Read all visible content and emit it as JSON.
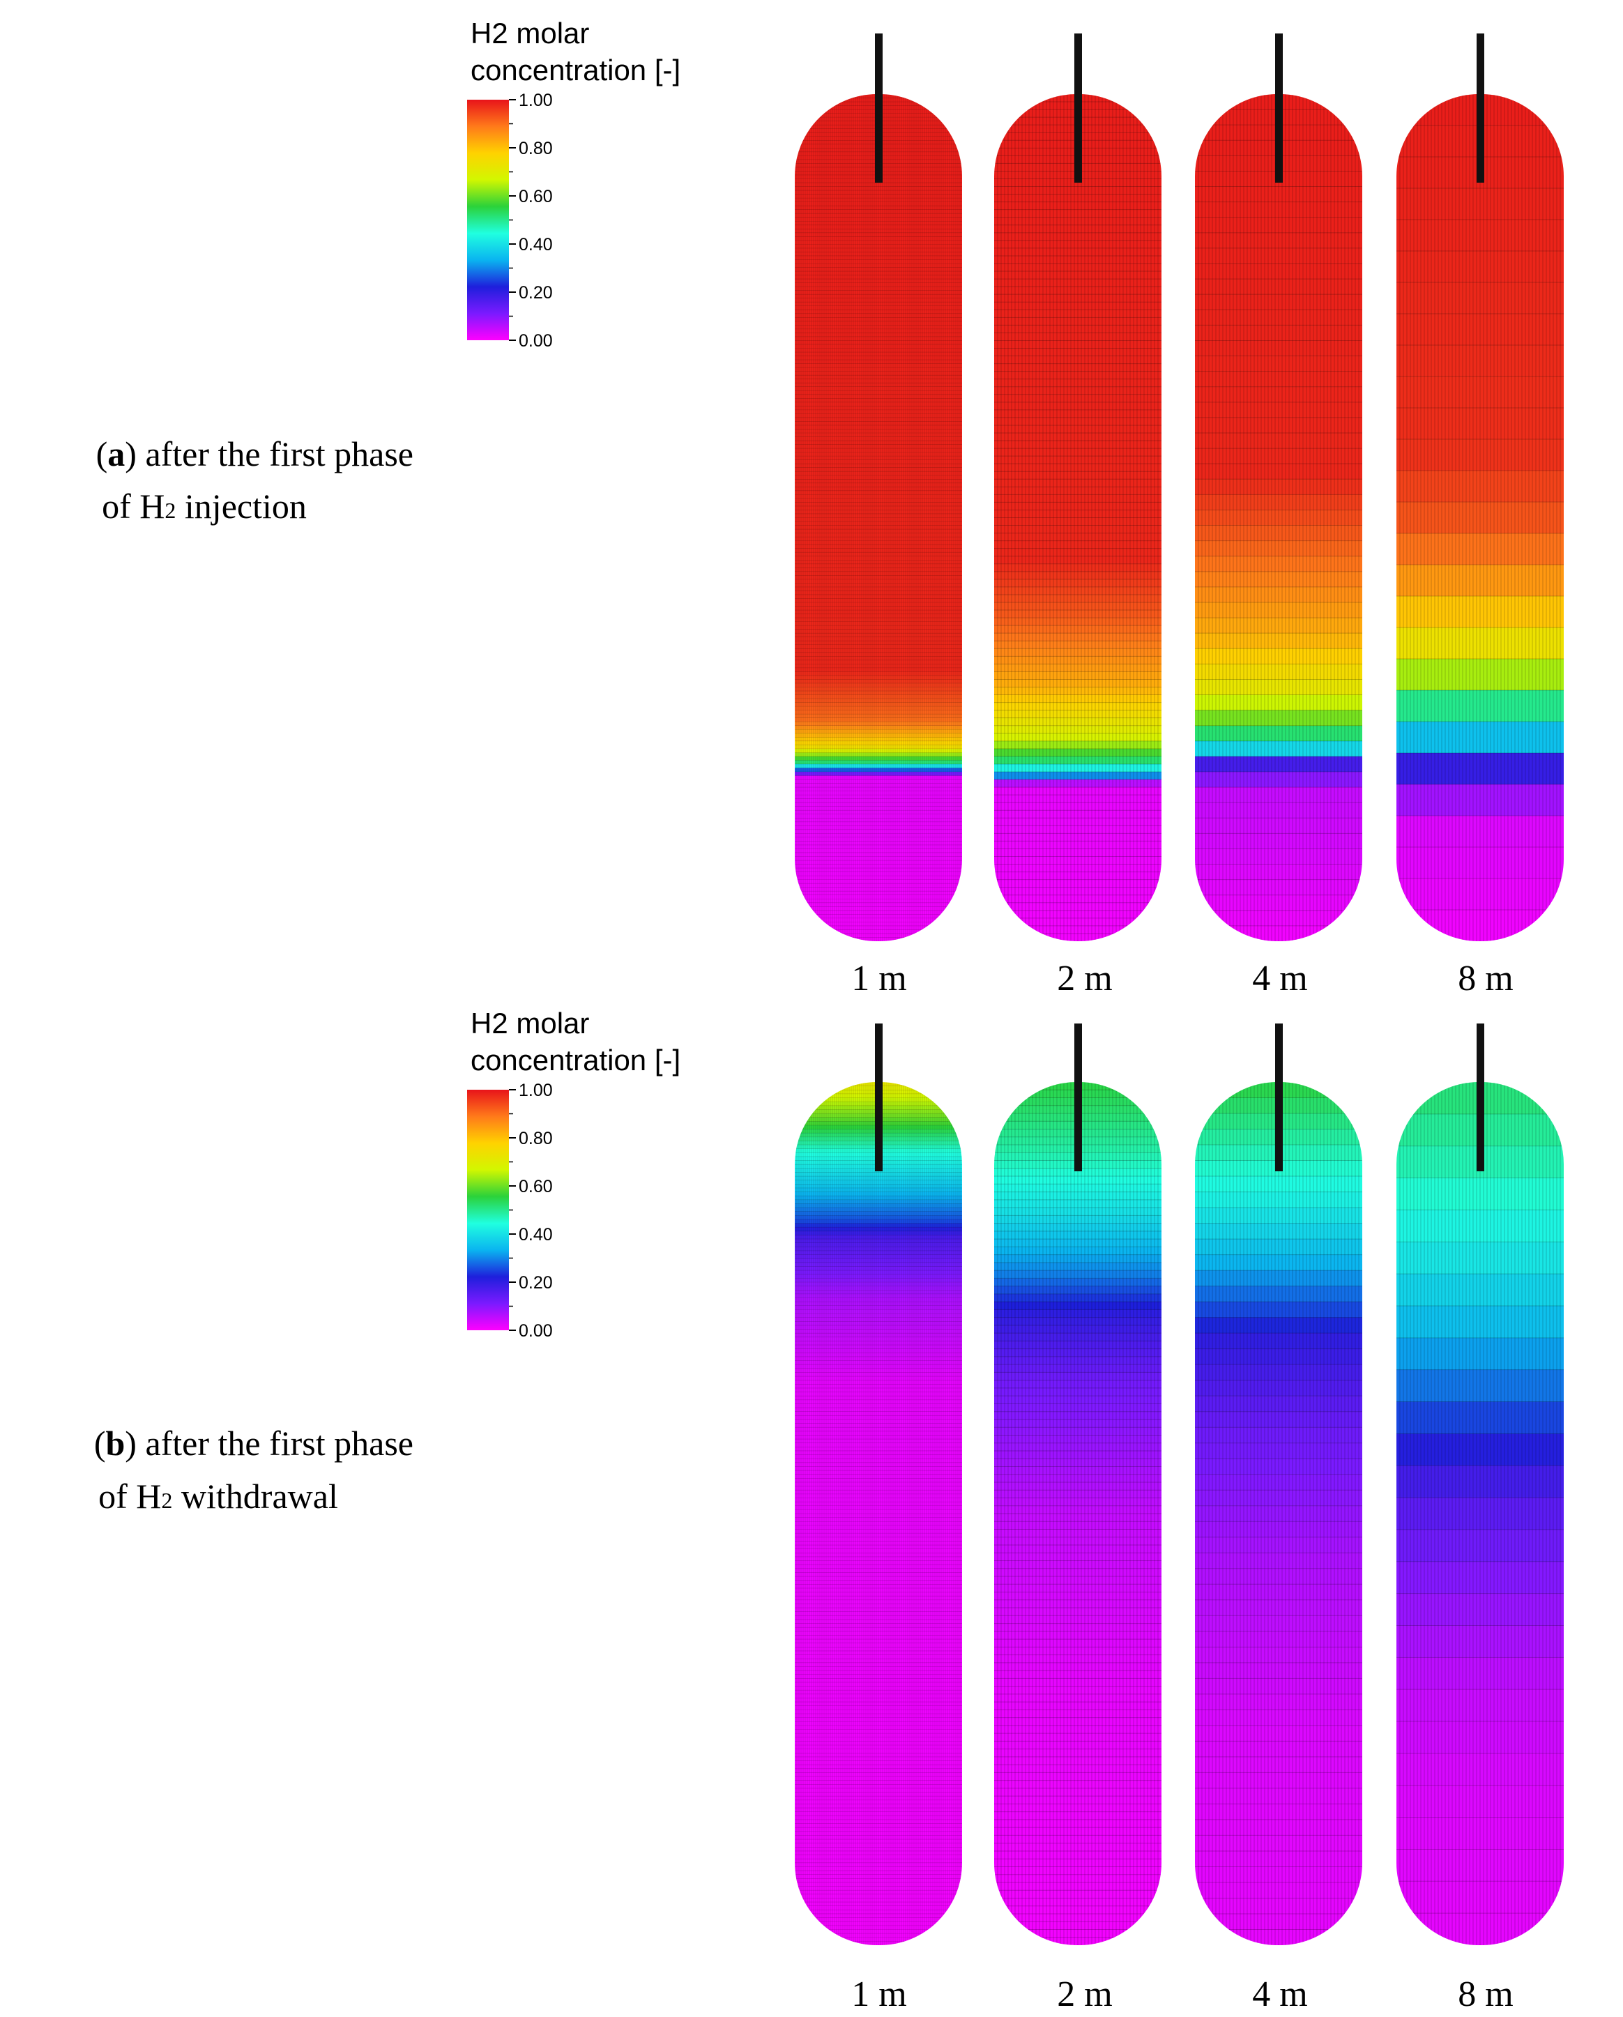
{
  "colors": {
    "stops": [
      "#ff00ff",
      "#7b1aff",
      "#1e1fdc",
      "#0ab4f0",
      "#20ffe0",
      "#2bd23a",
      "#d2f700",
      "#ffd200",
      "#ff7a1a",
      "#e8141a"
    ],
    "well": "#111111"
  },
  "panels": [
    {
      "id": "a",
      "caption": {
        "letter": "a",
        "line1_suffix": ") after the first phase",
        "line2_pre": "of H",
        "sub": "2",
        "line2_post": " injection"
      },
      "colorbar": {
        "title_line1": "H2 molar",
        "title_line2": "concentration [-]",
        "ticks": [
          "1.00",
          "0.80",
          "0.60",
          "0.40",
          "0.20",
          "0.00"
        ]
      },
      "columns": [
        {
          "resolution": "1 m",
          "rows": 220,
          "profile": [
            [
              0,
              0.99
            ],
            [
              0.68,
              0.98
            ],
            [
              0.74,
              0.9
            ],
            [
              0.77,
              0.75
            ],
            [
              0.79,
              0.5
            ],
            [
              0.8,
              0.2
            ],
            [
              0.805,
              0.02
            ],
            [
              1,
              0.01
            ]
          ]
        },
        {
          "resolution": "2 m",
          "rows": 110,
          "profile": [
            [
              0,
              0.99
            ],
            [
              0.55,
              0.98
            ],
            [
              0.62,
              0.92
            ],
            [
              0.7,
              0.82
            ],
            [
              0.76,
              0.68
            ],
            [
              0.79,
              0.5
            ],
            [
              0.805,
              0.3
            ],
            [
              0.815,
              0.02
            ],
            [
              1,
              0.01
            ]
          ]
        },
        {
          "resolution": "4 m",
          "rows": 55,
          "profile": [
            [
              0,
              0.99
            ],
            [
              0.45,
              0.98
            ],
            [
              0.55,
              0.9
            ],
            [
              0.64,
              0.82
            ],
            [
              0.7,
              0.72
            ],
            [
              0.745,
              0.58
            ],
            [
              0.77,
              0.42
            ],
            [
              0.79,
              0.18
            ],
            [
              0.82,
              0.05
            ],
            [
              1,
              0.01
            ]
          ]
        },
        {
          "resolution": "8 m",
          "rows": 27,
          "profile": [
            [
              0,
              0.99
            ],
            [
              0.42,
              0.97
            ],
            [
              0.52,
              0.92
            ],
            [
              0.59,
              0.83
            ],
            [
              0.65,
              0.73
            ],
            [
              0.7,
              0.6
            ],
            [
              0.74,
              0.42
            ],
            [
              0.78,
              0.28
            ],
            [
              0.81,
              0.12
            ],
            [
              0.86,
              0.03
            ],
            [
              1,
              0.01
            ]
          ]
        }
      ]
    },
    {
      "id": "b",
      "caption": {
        "letter": "b",
        "line1_suffix": ") after the first phase",
        "line2_pre": "of H",
        "sub": "2",
        "line2_post": " withdrawal"
      },
      "colorbar": {
        "title_line1": "H2 molar",
        "title_line2": "concentration [-]",
        "ticks": [
          "1.00",
          "0.80",
          "0.60",
          "0.40",
          "0.20",
          "0.00"
        ]
      },
      "columns": [
        {
          "resolution": "1 m",
          "rows": 220,
          "profile": [
            [
              0,
              0.72
            ],
            [
              0.04,
              0.6
            ],
            [
              0.08,
              0.45
            ],
            [
              0.12,
              0.36
            ],
            [
              0.16,
              0.26
            ],
            [
              0.18,
              0.17
            ],
            [
              0.25,
              0.07
            ],
            [
              0.35,
              0.02
            ],
            [
              1,
              0.01
            ]
          ]
        },
        {
          "resolution": "2 m",
          "rows": 110,
          "profile": [
            [
              0,
              0.55
            ],
            [
              0.08,
              0.48
            ],
            [
              0.15,
              0.4
            ],
            [
              0.22,
              0.3
            ],
            [
              0.27,
              0.2
            ],
            [
              0.35,
              0.12
            ],
            [
              0.5,
              0.05
            ],
            [
              0.7,
              0.02
            ],
            [
              1,
              0.01
            ]
          ]
        },
        {
          "resolution": "4 m",
          "rows": 55,
          "profile": [
            [
              0,
              0.55
            ],
            [
              0.07,
              0.48
            ],
            [
              0.14,
              0.42
            ],
            [
              0.2,
              0.35
            ],
            [
              0.26,
              0.26
            ],
            [
              0.3,
              0.2
            ],
            [
              0.4,
              0.13
            ],
            [
              0.55,
              0.07
            ],
            [
              0.75,
              0.03
            ],
            [
              1,
              0.02
            ]
          ]
        },
        {
          "resolution": "8 m",
          "rows": 27,
          "profile": [
            [
              0,
              0.52
            ],
            [
              0.1,
              0.47
            ],
            [
              0.2,
              0.41
            ],
            [
              0.28,
              0.35
            ],
            [
              0.36,
              0.28
            ],
            [
              0.42,
              0.22
            ],
            [
              0.48,
              0.16
            ],
            [
              0.58,
              0.1
            ],
            [
              0.7,
              0.05
            ],
            [
              0.82,
              0.03
            ],
            [
              1,
              0.02
            ]
          ]
        }
      ]
    }
  ]
}
